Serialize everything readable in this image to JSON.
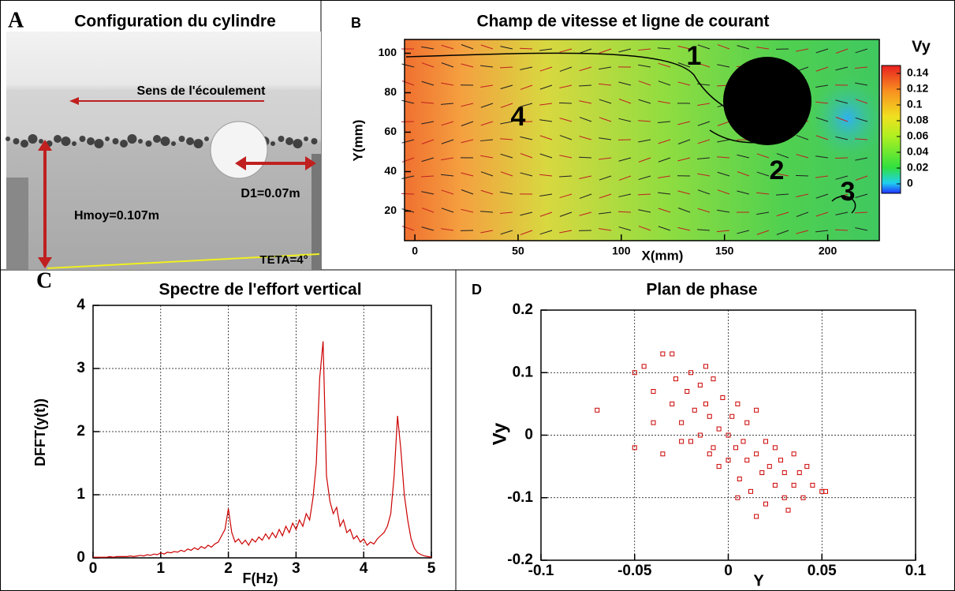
{
  "chart_data": [
    {
      "type": "photo",
      "panel": "A",
      "title": "Configuration du cylindre",
      "annotations": [
        "Sens de l'écoulement",
        "D1=0.07m",
        "Hmoy=0.107m",
        "TETA=4°"
      ]
    },
    {
      "type": "field",
      "panel": "B",
      "title": "Champ de vitesse et ligne de courant",
      "xlabel": "X(mm)",
      "ylabel": "Y(mm)",
      "xlim": [
        -5,
        225
      ],
      "xticks": [
        0,
        50,
        100,
        150,
        200
      ],
      "ylim": [
        5,
        107
      ],
      "yticks": [
        20,
        40,
        60,
        80,
        100
      ],
      "colorbar_label": "Vy",
      "clim": [
        -0.012,
        0.15
      ],
      "cticks": [
        0,
        0.02,
        0.04,
        0.06,
        0.08,
        0.1,
        0.12,
        0.14
      ],
      "annotations": [
        "1",
        "2",
        "3",
        "4"
      ]
    },
    {
      "type": "line",
      "panel": "C",
      "title": "Spectre de l'effort vertical",
      "xlabel": "F(Hz)",
      "ylabel": "DFFT(y(t))",
      "color": "#cc0000",
      "grid": true,
      "xlim": [
        0,
        5
      ],
      "xticks": [
        0,
        1,
        2,
        3,
        4,
        5
      ],
      "ylim": [
        0,
        4
      ],
      "yticks": [
        0,
        1,
        2,
        3,
        4
      ],
      "x": [
        0,
        0.05,
        0.1,
        0.15,
        0.2,
        0.25,
        0.3,
        0.35,
        0.4,
        0.45,
        0.5,
        0.55,
        0.6,
        0.65,
        0.7,
        0.75,
        0.8,
        0.85,
        0.9,
        0.95,
        1,
        1.05,
        1.1,
        1.15,
        1.2,
        1.25,
        1.3,
        1.35,
        1.4,
        1.45,
        1.5,
        1.55,
        1.6,
        1.65,
        1.7,
        1.75,
        1.8,
        1.85,
        1.9,
        1.95,
        2,
        2.05,
        2.1,
        2.15,
        2.2,
        2.25,
        2.3,
        2.35,
        2.4,
        2.45,
        2.5,
        2.55,
        2.6,
        2.65,
        2.7,
        2.75,
        2.8,
        2.85,
        2.9,
        2.95,
        3,
        3.05,
        3.1,
        3.15,
        3.2,
        3.25,
        3.3,
        3.35,
        3.4,
        3.45,
        3.5,
        3.55,
        3.6,
        3.65,
        3.7,
        3.75,
        3.8,
        3.85,
        3.9,
        3.95,
        4,
        4.05,
        4.1,
        4.15,
        4.2,
        4.25,
        4.3,
        4.35,
        4.4,
        4.45,
        4.5,
        4.55,
        4.6,
        4.65,
        4.7,
        4.75,
        4.8,
        4.85,
        4.9,
        4.95,
        5
      ],
      "values": [
        0.01,
        0.01,
        0.01,
        0.01,
        0.01,
        0.02,
        0.01,
        0.02,
        0.02,
        0.02,
        0.02,
        0.03,
        0.02,
        0.03,
        0.04,
        0.03,
        0.05,
        0.04,
        0.06,
        0.05,
        0.08,
        0.06,
        0.09,
        0.08,
        0.1,
        0.09,
        0.12,
        0.1,
        0.14,
        0.12,
        0.16,
        0.13,
        0.18,
        0.15,
        0.2,
        0.17,
        0.22,
        0.25,
        0.35,
        0.45,
        0.78,
        0.4,
        0.25,
        0.3,
        0.22,
        0.28,
        0.2,
        0.3,
        0.25,
        0.33,
        0.28,
        0.38,
        0.3,
        0.4,
        0.32,
        0.45,
        0.35,
        0.5,
        0.4,
        0.55,
        0.45,
        0.6,
        0.5,
        0.7,
        0.6,
        0.95,
        1.5,
        2.85,
        3.43,
        1.3,
        0.9,
        0.7,
        0.8,
        0.5,
        0.6,
        0.4,
        0.45,
        0.3,
        0.35,
        0.25,
        0.3,
        0.2,
        0.25,
        0.22,
        0.3,
        0.35,
        0.4,
        0.5,
        0.7,
        1.3,
        2.25,
        1.7,
        1,
        0.6,
        0.3,
        0.15,
        0.08,
        0.05,
        0.03,
        0.02,
        0.01
      ]
    },
    {
      "type": "scatter",
      "panel": "D",
      "title": "Plan de phase",
      "xlabel": "Y",
      "ylabel": "Vy",
      "color": "#cc0000",
      "grid": true,
      "xlim": [
        -0.1,
        0.1
      ],
      "xticks": [
        -0.1,
        -0.05,
        0,
        0.05,
        0.1
      ],
      "ylim": [
        -0.2,
        0.2
      ],
      "yticks": [
        -0.2,
        -0.1,
        0,
        0.1,
        0.2
      ],
      "x": [
        -0.07,
        -0.05,
        -0.045,
        -0.04,
        -0.035,
        -0.03,
        -0.05,
        -0.04,
        -0.035,
        -0.03,
        -0.028,
        -0.025,
        -0.022,
        -0.02,
        -0.02,
        -0.018,
        -0.015,
        -0.015,
        -0.012,
        -0.01,
        -0.01,
        -0.008,
        -0.005,
        -0.005,
        -0.003,
        0,
        0,
        0.002,
        0.004,
        0.005,
        0.006,
        0.008,
        0.01,
        0.01,
        0.012,
        0.015,
        0.015,
        0.018,
        0.02,
        0.02,
        0.022,
        0.025,
        0.025,
        0.028,
        0.03,
        0.03,
        0.032,
        0.035,
        0.035,
        0.038,
        0.04,
        0.042,
        0.045,
        0.05,
        0.052,
        -0.025,
        -0.008,
        0.005,
        0.015,
        -0.012
      ],
      "values": [
        0.04,
        0.1,
        0.11,
        0.07,
        0.13,
        0.13,
        -0.02,
        0.02,
        -0.03,
        0.05,
        0.09,
        0.02,
        0.07,
        0.1,
        -0.01,
        0.04,
        0.08,
        0,
        0.05,
        -0.03,
        0.03,
        0.09,
        0.01,
        -0.05,
        0.06,
        0,
        -0.04,
        0.03,
        -0.02,
        0.05,
        -0.07,
        -0.01,
        -0.04,
        0.02,
        -0.09,
        -0.03,
        0.04,
        -0.06,
        -0.01,
        -0.11,
        -0.05,
        -0.02,
        -0.08,
        -0.04,
        -0.1,
        -0.06,
        -0.12,
        -0.03,
        -0.08,
        -0.06,
        -0.1,
        -0.05,
        -0.08,
        -0.09,
        -0.09,
        -0.01,
        -0.02,
        -0.1,
        -0.13,
        0.11
      ]
    }
  ]
}
